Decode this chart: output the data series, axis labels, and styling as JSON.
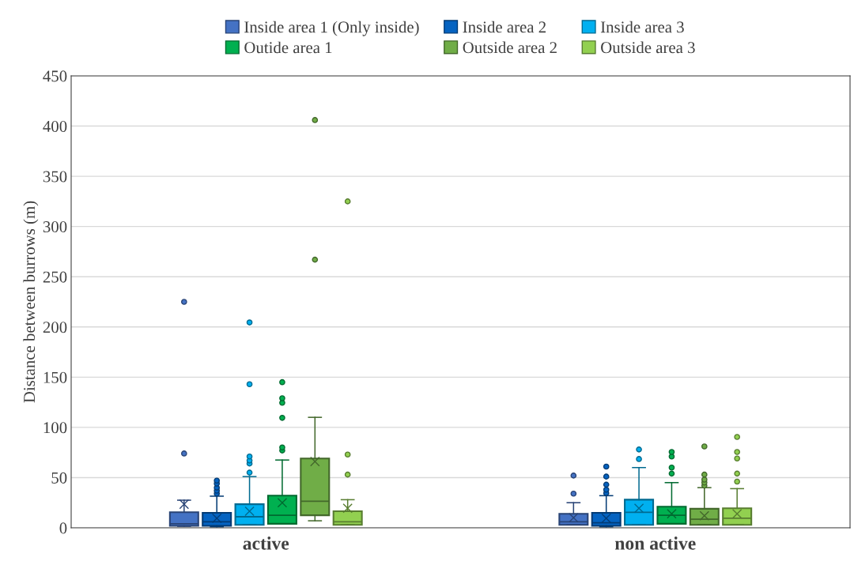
{
  "chart_data": {
    "type": "box",
    "ylabel": "Distance between burrows (m)",
    "categories": [
      "active",
      "non active"
    ],
    "ylim": [
      0,
      450
    ],
    "yticks": [
      0,
      50,
      100,
      150,
      200,
      250,
      300,
      350,
      400,
      450
    ],
    "grid": "y",
    "legend": "top",
    "marker": "cross",
    "series": [
      {
        "name": "Inside area 1 (Only inside)",
        "color": "#4472c4",
        "boxes": [
          {
            "low": 1.5,
            "q1": 2,
            "median": 4,
            "q3": 15.5,
            "high": 27.5,
            "mean": 23.5,
            "outliers": [
              74,
              225
            ]
          },
          {
            "low": 3,
            "q1": 3,
            "median": 6,
            "q3": 14,
            "high": 25,
            "mean": 10,
            "outliers": [
              34,
              52
            ]
          }
        ]
      },
      {
        "name": "Inside area 2",
        "color": "#0563c1",
        "boxes": [
          {
            "low": 1,
            "q1": 2,
            "median": 6,
            "q3": 15,
            "high": 31.5,
            "mean": 9.5,
            "outliers": [
              34,
              37,
              40,
              44,
              47
            ]
          },
          {
            "low": 1,
            "q1": 2,
            "median": 5,
            "q3": 15,
            "high": 32,
            "mean": 9.5,
            "outliers": [
              34.5,
              38,
              43,
              51,
              61
            ]
          }
        ]
      },
      {
        "name": "Inside area 3",
        "color": "#00b0f0",
        "boxes": [
          {
            "low": 3,
            "q1": 3,
            "median": 11,
            "q3": 23.5,
            "high": 51,
            "mean": 16.5,
            "outliers": [
              55,
              64,
              67,
              71,
              143,
              204.5
            ]
          },
          {
            "low": 3,
            "q1": 3,
            "median": 15.5,
            "q3": 28,
            "high": 60,
            "mean": 19.5,
            "outliers": [
              68.5,
              78
            ]
          }
        ]
      },
      {
        "name": "Outide area 1",
        "color": "#00b050",
        "boxes": [
          {
            "low": 4,
            "q1": 4,
            "median": 12.5,
            "q3": 32,
            "high": 67.5,
            "mean": 25,
            "outliers": [
              77,
              80,
              109.5,
              124.5,
              129,
              145
            ]
          },
          {
            "low": 4,
            "q1": 4,
            "median": 12.5,
            "q3": 21,
            "high": 45,
            "mean": 14,
            "outliers": [
              54,
              60,
              71,
              75.5
            ]
          }
        ]
      },
      {
        "name": "Outside area 2",
        "color": "#70ad47",
        "boxes": [
          {
            "low": 7,
            "q1": 12.5,
            "median": 26.5,
            "q3": 69,
            "high": 110,
            "mean": 66,
            "outliers": [
              267,
              406
            ]
          },
          {
            "low": 3,
            "q1": 3,
            "median": 8.5,
            "q3": 19,
            "high": 40,
            "mean": 12,
            "outliers": [
              42,
              45,
              48,
              53,
              81
            ]
          }
        ]
      },
      {
        "name": "Outside area 3",
        "color": "#92d050",
        "boxes": [
          {
            "low": 3,
            "q1": 3,
            "median": 6,
            "q3": 16.5,
            "high": 28,
            "mean": 19.5,
            "outliers": [
              53,
              73,
              325
            ]
          },
          {
            "low": 3,
            "q1": 3,
            "median": 9.5,
            "q3": 19.5,
            "high": 39,
            "mean": 14,
            "outliers": [
              46,
              54,
              69,
              75.5,
              90.5
            ]
          }
        ]
      }
    ]
  }
}
